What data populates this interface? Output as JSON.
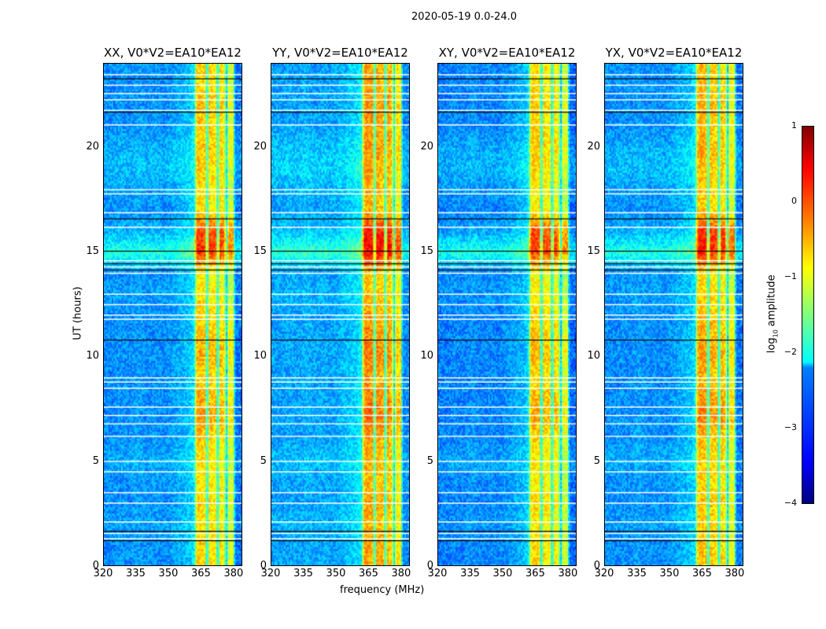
{
  "chart_data": {
    "type": "heatmap",
    "title": "2020-05-19 0.0-24.0",
    "panels": [
      {
        "title": "XX, V0*V2=EA10*EA12",
        "band_offset": 0.0,
        "low_offset": 0.0
      },
      {
        "title": "YY, V0*V2=EA10*EA12",
        "band_offset": 0.25,
        "low_offset": 0.1
      },
      {
        "title": "XY, V0*V2=EA10*EA12",
        "band_offset": -0.05,
        "low_offset": -0.05
      },
      {
        "title": "YX, V0*V2=EA10*EA12",
        "band_offset": 0.1,
        "low_offset": 0.0
      }
    ],
    "xlabel": "frequency (MHz)",
    "ylabel": "UT (hours)",
    "xlim": [
      320,
      384
    ],
    "ylim": [
      0,
      24
    ],
    "xticks": [
      "320",
      "335",
      "350",
      "365",
      "380"
    ],
    "yticks": [
      "0",
      "5",
      "10",
      "15",
      "20"
    ],
    "colorbar": {
      "label_prefix": "log",
      "label_sub": "10",
      "label_suffix": " amplitude",
      "range": [
        -4,
        1
      ],
      "ticks": [
        "1",
        "0",
        "−1",
        "−2",
        "−3",
        "−4"
      ]
    },
    "freq_profile": {
      "freq_mhz": [
        320,
        324,
        328,
        332,
        336,
        340,
        344,
        348,
        352,
        356,
        360,
        362,
        363,
        364,
        367,
        368,
        369,
        372,
        373,
        374,
        376,
        377,
        378,
        380,
        381,
        384
      ],
      "log10_amp": [
        -2.7,
        -2.7,
        -2.65,
        -2.7,
        -2.6,
        -2.7,
        -2.65,
        -2.7,
        -2.6,
        -2.5,
        -2.4,
        -2.2,
        -0.7,
        -0.5,
        -0.6,
        -2.4,
        -0.6,
        -0.7,
        -2.4,
        -0.6,
        -0.8,
        -2.4,
        -0.9,
        -1.0,
        -2.8,
        -2.8
      ]
    },
    "time_profile": {
      "hours": [
        0,
        1,
        2,
        3,
        4,
        5,
        6,
        7,
        8,
        9,
        10,
        11,
        12,
        13,
        14,
        15,
        16,
        17,
        18,
        19,
        20,
        21,
        22,
        23,
        24
      ],
      "band_offset": [
        -0.1,
        -0.1,
        -0.2,
        -0.1,
        -0.2,
        -0.2,
        -0.1,
        0.2,
        0.1,
        -0.1,
        0.1,
        0.0,
        -0.1,
        -0.2,
        -0.3,
        0.7,
        0.6,
        -0.2,
        -0.2,
        -0.1,
        0.0,
        -0.1,
        0.0,
        -0.1,
        -0.1
      ],
      "low_offset": [
        0,
        0,
        0.1,
        0,
        0,
        0.2,
        0,
        0,
        0,
        0,
        0,
        0,
        0,
        0.1,
        0,
        0.9,
        0.2,
        0,
        0.1,
        0.3,
        0.2,
        0,
        0,
        0,
        0
      ]
    },
    "flagged_hours": [
      1.3,
      1.55,
      2.1,
      3.0,
      3.5,
      4.5,
      5.0,
      6.2,
      6.8,
      7.2,
      7.6,
      8.5,
      8.8,
      9.0,
      11.8,
      12.0,
      12.5,
      13.0,
      14.0,
      14.3,
      14.6,
      16.2,
      16.9,
      17.8,
      18.0,
      21.1,
      21.8,
      22.3,
      22.6,
      23.0,
      23.5
    ],
    "dark_hours": [
      1.2,
      1.65,
      10.8,
      14.15,
      14.45,
      15.05,
      16.6,
      21.7,
      23.3
    ]
  }
}
